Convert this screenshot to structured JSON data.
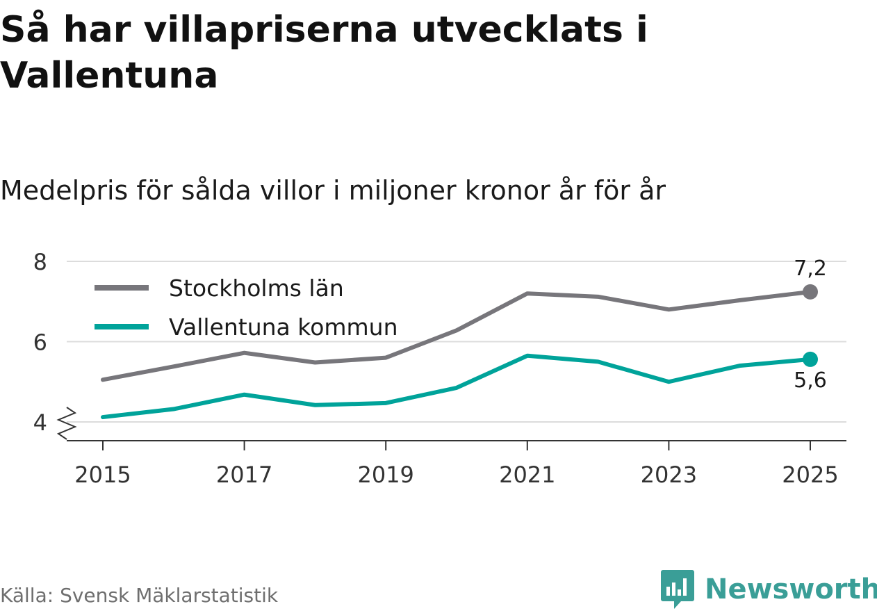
{
  "header": {
    "title": "Så har villapriserna utvecklats i Vallentuna",
    "subtitle": "Medelpris för sålda villor i miljoner kronor år för år"
  },
  "footer": {
    "source": "Källa: Svensk Mäklarstatistik",
    "brand": "Newsworthy",
    "brand_icon": "bar-chart-speech-bubble-icon"
  },
  "colors": {
    "stockholm": "#77767b",
    "vallentuna": "#00a39a",
    "grid": "#dcdcdc",
    "axis": "#333333",
    "brand": "#3a9e97"
  },
  "chart_data": {
    "type": "line",
    "x": [
      2015,
      2016,
      2017,
      2018,
      2019,
      2020,
      2021,
      2022,
      2023,
      2024,
      2025
    ],
    "series": [
      {
        "name": "Stockholms län",
        "color": "#77767b",
        "values": [
          5.05,
          5.38,
          5.72,
          5.48,
          5.6,
          6.28,
          7.2,
          7.12,
          6.8,
          7.03,
          7.24
        ],
        "end_label": "7,2"
      },
      {
        "name": "Vallentuna kommun",
        "color": "#00a39a",
        "values": [
          4.12,
          4.32,
          4.68,
          4.42,
          4.47,
          4.85,
          5.65,
          5.5,
          5.0,
          5.4,
          5.56
        ],
        "end_label": "5,6"
      }
    ],
    "yticks": [
      4,
      6,
      8
    ],
    "ytick_labels": [
      "4",
      "6",
      "8"
    ],
    "xticks": [
      2015,
      2017,
      2019,
      2021,
      2023,
      2025
    ],
    "xtick_labels": [
      "2015",
      "2017",
      "2019",
      "2021",
      "2023",
      "2025"
    ],
    "ylim": [
      4,
      8
    ],
    "y_axis_break": true,
    "legend_position": "top-left",
    "title": "Så har villapriserna utvecklats i Vallentuna",
    "subtitle": "Medelpris för sålda villor i miljoner kronor år för år",
    "xlabel": "",
    "ylabel": ""
  }
}
